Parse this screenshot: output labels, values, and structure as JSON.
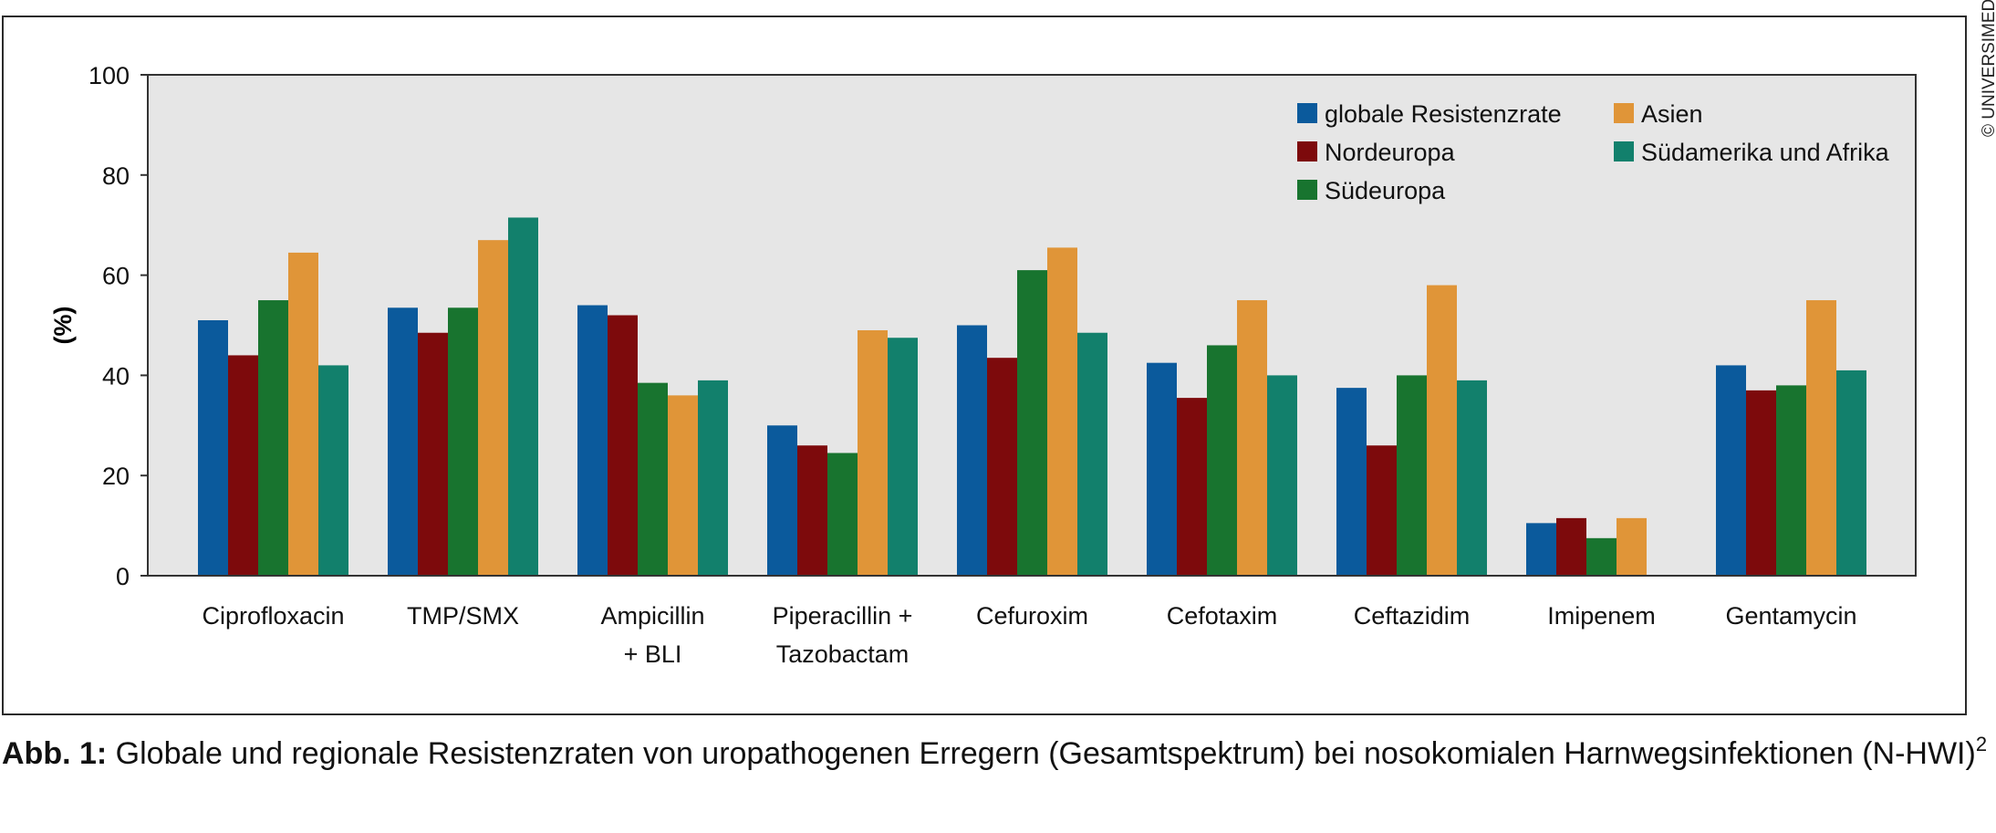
{
  "caption": {
    "label": "Abb. 1:",
    "text": " Globale und regionale Resistenzraten von uropathogenen Erregern (Gesamtspektrum) bei nosokomialen Harnwegsinfektionen (N-HWI)",
    "superscript": "2"
  },
  "copyright": "© UNIVERSIMED",
  "chart_data": {
    "type": "bar",
    "ylabel": "(%)",
    "ylim": [
      0,
      100
    ],
    "yticks": [
      0,
      20,
      40,
      60,
      80,
      100
    ],
    "grid": false,
    "legend_position": "top-right",
    "plot_background": "#e6e6e6",
    "categories": [
      [
        "Ciprofloxacin"
      ],
      [
        "TMP/SMX"
      ],
      [
        "Ampicillin",
        "+ BLI"
      ],
      [
        "Piperacillin +",
        "Tazobactam"
      ],
      [
        "Cefuroxim"
      ],
      [
        "Cefotaxim"
      ],
      [
        "Ceftazidim"
      ],
      [
        "Imipenem"
      ],
      [
        "Gentamycin"
      ]
    ],
    "series": [
      {
        "name": "globale Resistenzrate",
        "color": "#0b5a9c",
        "values": [
          51,
          53.5,
          54,
          30,
          50,
          42.5,
          37.5,
          10.5,
          42
        ]
      },
      {
        "name": "Nordeuropa",
        "color": "#7d0a0c",
        "values": [
          44,
          48.5,
          52,
          26,
          43.5,
          35.5,
          26,
          11.5,
          37
        ]
      },
      {
        "name": "Südeuropa",
        "color": "#18742f",
        "values": [
          55,
          53.5,
          38.5,
          24.5,
          61,
          46,
          40,
          7.5,
          38
        ]
      },
      {
        "name": "Asien",
        "color": "#e09538",
        "values": [
          64.5,
          67,
          36,
          49,
          65.5,
          55,
          58,
          11.5,
          55
        ]
      },
      {
        "name": "Südamerika und Afrika",
        "color": "#12806c",
        "values": [
          42,
          71.5,
          39,
          47.5,
          48.5,
          40,
          39,
          null,
          41
        ]
      }
    ]
  }
}
